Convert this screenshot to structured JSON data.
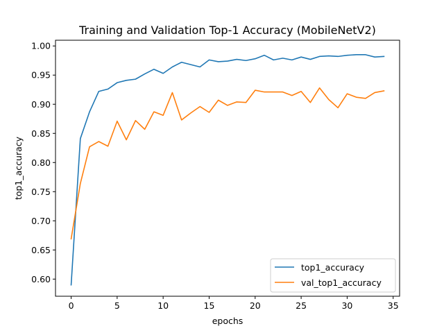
{
  "chart_data": {
    "type": "line",
    "title": "Training and Validation Top-1 Accuracy (MobileNetV2)",
    "xlabel": "epochs",
    "ylabel": "top1_accuracy",
    "xlim": [
      -1.7,
      35.7
    ],
    "ylim": [
      0.5706,
      1.0098
    ],
    "xticks": [
      0,
      5,
      10,
      15,
      20,
      25,
      30,
      35
    ],
    "yticks": [
      0.6,
      0.65,
      0.7,
      0.75,
      0.8,
      0.85,
      0.9,
      0.95,
      1.0
    ],
    "ytick_labels": [
      "0.60",
      "0.65",
      "0.70",
      "0.75",
      "0.80",
      "0.85",
      "0.90",
      "0.95",
      "1.00"
    ],
    "grid": false,
    "legend_position": "lower-right",
    "x": [
      0,
      1,
      2,
      3,
      4,
      5,
      6,
      7,
      8,
      9,
      10,
      11,
      12,
      13,
      14,
      15,
      16,
      17,
      18,
      19,
      20,
      21,
      22,
      23,
      24,
      25,
      26,
      27,
      28,
      29,
      30,
      31,
      32,
      33,
      34
    ],
    "series": [
      {
        "name": "top1_accuracy",
        "color": "#1f77b4",
        "values": [
          0.59,
          0.841,
          0.887,
          0.922,
          0.926,
          0.937,
          0.941,
          0.943,
          0.952,
          0.96,
          0.953,
          0.964,
          0.972,
          0.968,
          0.964,
          0.976,
          0.973,
          0.974,
          0.977,
          0.975,
          0.978,
          0.984,
          0.976,
          0.979,
          0.976,
          0.981,
          0.977,
          0.982,
          0.983,
          0.982,
          0.984,
          0.985,
          0.985,
          0.981,
          0.982
        ]
      },
      {
        "name": "val_top1_accuracy",
        "color": "#ff7f0e",
        "values": [
          0.669,
          0.764,
          0.827,
          0.836,
          0.828,
          0.871,
          0.839,
          0.872,
          0.857,
          0.887,
          0.881,
          0.92,
          0.873,
          0.885,
          0.896,
          0.886,
          0.907,
          0.898,
          0.904,
          0.903,
          0.924,
          0.921,
          0.921,
          0.921,
          0.915,
          0.922,
          0.903,
          0.928,
          0.908,
          0.894,
          0.918,
          0.912,
          0.91,
          0.92,
          0.923
        ]
      }
    ]
  }
}
